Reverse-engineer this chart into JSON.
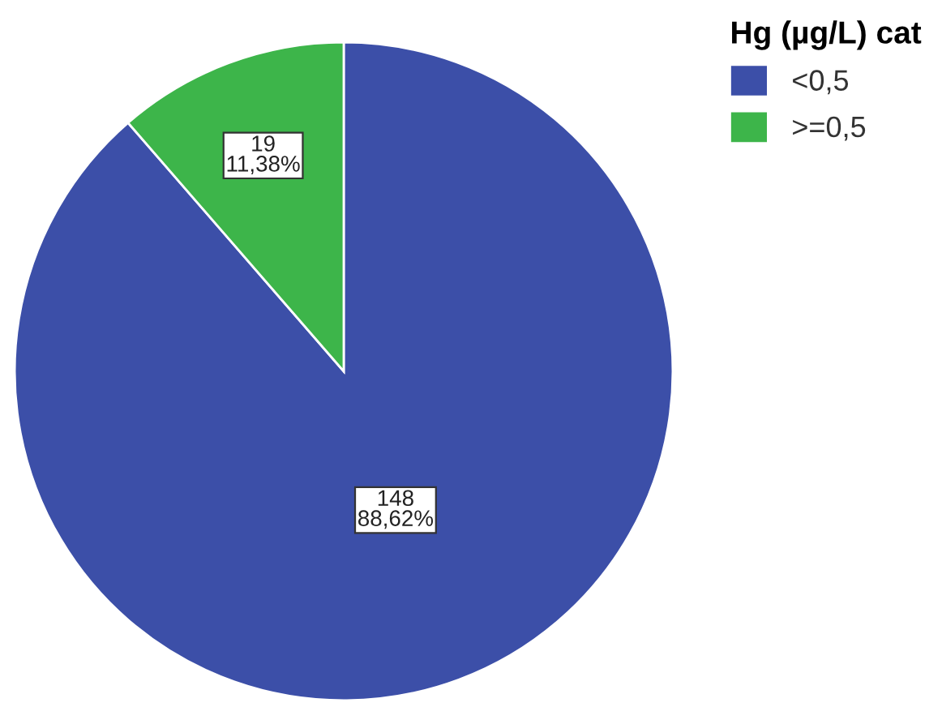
{
  "chart_data": {
    "type": "pie",
    "legend_title": "Hg (µg/L) cat",
    "categories": [
      "<0,5",
      ">=0,5"
    ],
    "values": [
      148,
      19
    ],
    "colors": [
      "#3c4fa8",
      "#3db54a"
    ],
    "value_labels": [
      "148\n88,62%",
      "19\n11,38%"
    ],
    "legend": "top right"
  }
}
